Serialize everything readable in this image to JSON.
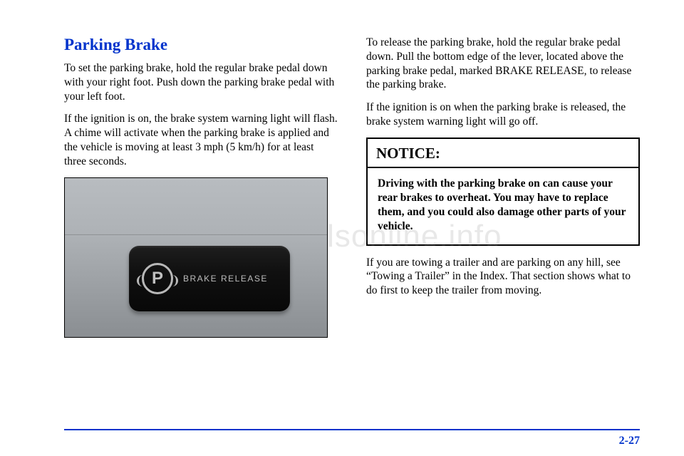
{
  "heading": "Parking Brake",
  "left": {
    "p1": "To set the parking brake, hold the regular brake pedal down with your right foot. Push down the parking brake pedal with your left foot.",
    "p2": "If the ignition is on, the brake system warning light will flash. A chime will activate when the parking brake is applied and the vehicle is moving at least 3 mph (5 km/h) for at least three seconds."
  },
  "lever": {
    "symbol_letter": "P",
    "label": "BRAKE RELEASE"
  },
  "right": {
    "p1": "To release the parking brake, hold the regular brake pedal down. Pull the bottom edge of the lever, located above the parking brake pedal, marked BRAKE RELEASE, to release the parking brake.",
    "p2": "If the ignition is on when the parking brake is released, the brake system warning light will go off.",
    "p3": "If you are towing a trailer and are parking on any hill, see “Towing a Trailer” in the Index. That section shows what to do first to keep the trailer from moving."
  },
  "notice": {
    "title": "NOTICE:",
    "body": "Driving with the parking brake on can cause your rear brakes to overheat. You may have to replace them, and you could also damage other parts of your vehicle."
  },
  "page_number": "2-27",
  "watermark": "carmanualsonline.info",
  "colors": {
    "accent": "#0033cc",
    "text": "#000000",
    "bg": "#ffffff"
  }
}
